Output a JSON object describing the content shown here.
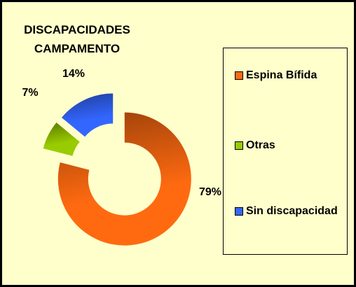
{
  "chart_data": {
    "type": "donut",
    "title": "DISCAPACIDADES CAMPAMENTO",
    "categories": [
      "Espina Bífida",
      "Otras",
      "Sin discapacidad"
    ],
    "values": [
      79,
      7,
      14
    ],
    "value_labels": [
      "79%",
      "7%",
      "14%"
    ],
    "colors": [
      "#ff6a10",
      "#99cc00",
      "#3366ff"
    ],
    "legend": "right"
  }
}
